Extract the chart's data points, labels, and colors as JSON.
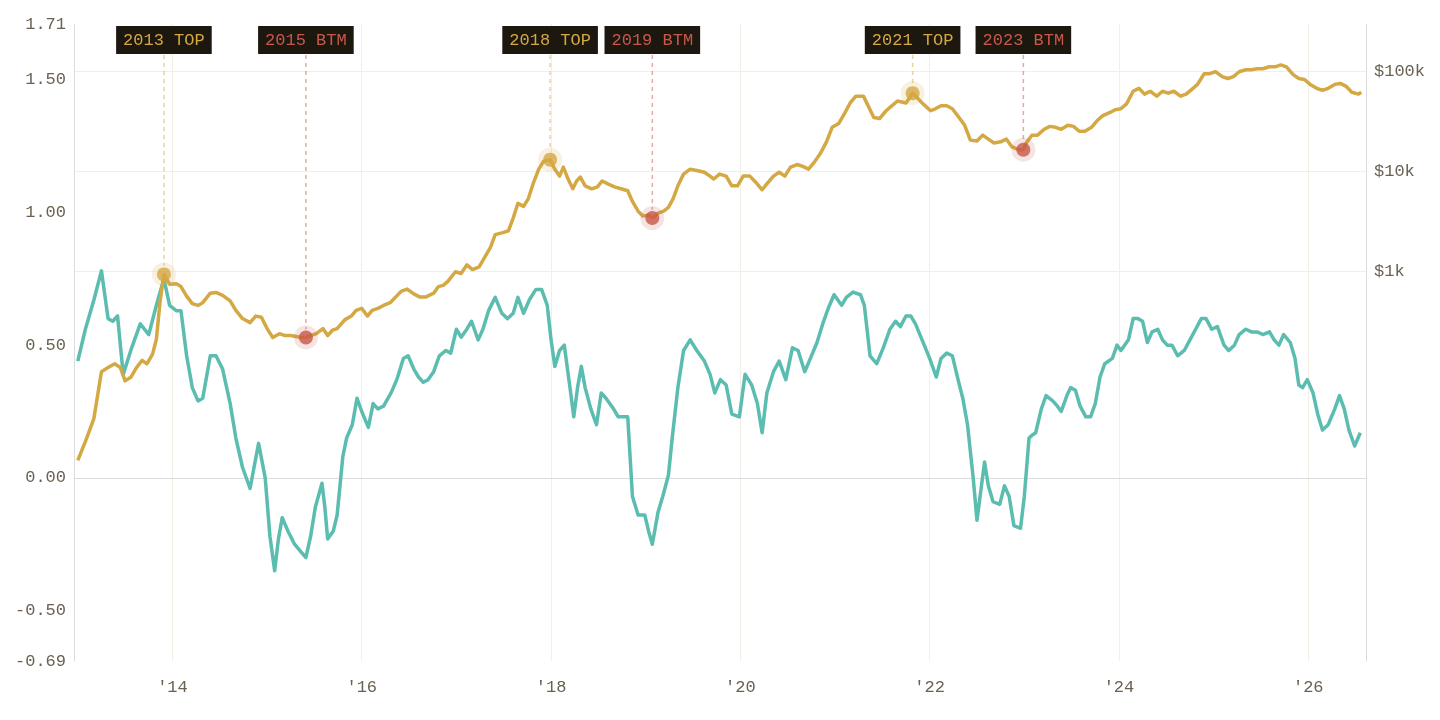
{
  "chart_data": {
    "type": "line",
    "xlim": [
      2012.96,
      2026.61
    ],
    "xticks": [
      {
        "value": 2014,
        "label": "'14"
      },
      {
        "value": 2016,
        "label": "'16"
      },
      {
        "value": 2018,
        "label": "'18"
      },
      {
        "value": 2020,
        "label": "'20"
      },
      {
        "value": 2022,
        "label": "'22"
      },
      {
        "value": 2024,
        "label": "'24"
      },
      {
        "value": 2026,
        "label": "'26"
      }
    ],
    "ylim": [
      -0.69,
      1.71
    ],
    "yticks": [
      {
        "value": -0.69,
        "label": "-0.69"
      },
      {
        "value": -0.5,
        "label": "-0.50"
      },
      {
        "value": 0,
        "label": "0.00"
      },
      {
        "value": 0.5,
        "label": "0.50"
      },
      {
        "value": 1,
        "label": "1.00"
      },
      {
        "value": 1.5,
        "label": "1.50"
      },
      {
        "value": 1.71,
        "label": "1.71"
      }
    ],
    "y2lim": [
      0.128,
      300000
    ],
    "y2ticks": [
      {
        "value": 1000,
        "label": "$1k"
      },
      {
        "value": 10000,
        "label": "$10k"
      },
      {
        "value": 100000,
        "label": "$100k"
      }
    ],
    "log": "y2",
    "grid": true,
    "series": [
      {
        "color": "#5bbcb0",
        "x": [
          2013.0,
          2013.08,
          2013.17,
          2013.25,
          2013.32,
          2013.37,
          2013.42,
          2013.48,
          2013.56,
          2013.66,
          2013.75,
          2013.83,
          2013.91,
          2013.97,
          2014.04,
          2014.09,
          2014.15,
          2014.21,
          2014.27,
          2014.32,
          2014.4,
          2014.46,
          2014.53,
          2014.61,
          2014.67,
          2014.74,
          2014.82,
          2014.91,
          2014.98,
          2015.03,
          2015.08,
          2015.12,
          2015.16,
          2015.22,
          2015.29,
          2015.36,
          2015.41,
          2015.46,
          2015.51,
          2015.58,
          2015.61,
          2015.64,
          2015.7,
          2015.74,
          2015.8,
          2015.84,
          2015.9,
          2015.95,
          2016.0,
          2016.07,
          2016.12,
          2016.17,
          2016.23,
          2016.31,
          2016.37,
          2016.44,
          2016.49,
          2016.55,
          2016.6,
          2016.65,
          2016.7,
          2016.76,
          2016.82,
          2016.89,
          2016.94,
          2017.0,
          2017.05,
          2017.11,
          2017.16,
          2017.23,
          2017.28,
          2017.34,
          2017.41,
          2017.48,
          2017.54,
          2017.6,
          2017.65,
          2017.71,
          2017.77,
          2017.84,
          2017.9,
          2017.96,
          2018.0,
          2018.04,
          2018.09,
          2018.14,
          2018.2,
          2018.24,
          2018.28,
          2018.32,
          2018.36,
          2018.42,
          2018.48,
          2018.53,
          2018.58,
          2018.66,
          2018.71,
          2018.76,
          2018.81,
          2018.86,
          2018.92,
          2018.99,
          2019.03,
          2019.07,
          2019.13,
          2019.18,
          2019.24,
          2019.28,
          2019.34,
          2019.4,
          2019.47,
          2019.54,
          2019.62,
          2019.68,
          2019.73,
          2019.79,
          2019.85,
          2019.91,
          2019.99,
          2020.05,
          2020.12,
          2020.18,
          2020.23,
          2020.28,
          2020.35,
          2020.41,
          2020.48,
          2020.55,
          2020.61,
          2020.68,
          2020.74,
          2020.81,
          2020.87,
          2020.93,
          2020.99,
          2021.07,
          2021.12,
          2021.19,
          2021.27,
          2021.31,
          2021.37,
          2021.44,
          2021.51,
          2021.58,
          2021.64,
          2021.69,
          2021.75,
          2021.8,
          2021.85,
          2021.92,
          2022.0,
          2022.07,
          2022.12,
          2022.18,
          2022.24,
          2022.3,
          2022.35,
          2022.4,
          2022.46,
          2022.5,
          2022.54,
          2022.58,
          2022.62,
          2022.67,
          2022.74,
          2022.79,
          2022.84,
          2022.89,
          2022.96,
          2023.0,
          2023.05,
          2023.08,
          2023.12,
          2023.18,
          2023.23,
          2023.3,
          2023.35,
          2023.39,
          2023.45,
          2023.49,
          2023.54,
          2023.59,
          2023.65,
          2023.7,
          2023.75,
          2023.8,
          2023.85,
          2023.93,
          2023.98,
          2024.02,
          2024.06,
          2024.1,
          2024.15,
          2024.2,
          2024.25,
          2024.3,
          2024.35,
          2024.41,
          2024.46,
          2024.51,
          2024.56,
          2024.62,
          2024.69,
          2024.75,
          2024.81,
          2024.87,
          2024.92,
          2024.98,
          2025.04,
          2025.11,
          2025.16,
          2025.22,
          2025.27,
          2025.34,
          2025.4,
          2025.46,
          2025.52,
          2025.59,
          2025.64,
          2025.69,
          2025.74,
          2025.81,
          2025.86,
          2025.9,
          2025.94,
          2025.99,
          2026.05,
          2026.1,
          2026.15,
          2026.21,
          2026.28,
          2026.33,
          2026.38,
          2026.43,
          2026.49,
          2026.55
        ],
        "values": [
          0.44,
          0.56,
          0.67,
          0.78,
          0.6,
          0.59,
          0.61,
          0.39,
          0.48,
          0.58,
          0.54,
          0.65,
          0.75,
          0.65,
          0.63,
          0.63,
          0.46,
          0.34,
          0.29,
          0.3,
          0.46,
          0.46,
          0.41,
          0.28,
          0.15,
          0.04,
          -0.04,
          0.13,
          0.0,
          -0.22,
          -0.35,
          -0.23,
          -0.15,
          -0.2,
          -0.25,
          -0.28,
          -0.3,
          -0.22,
          -0.11,
          -0.02,
          -0.11,
          -0.23,
          -0.2,
          -0.14,
          0.08,
          0.15,
          0.2,
          0.3,
          0.25,
          0.19,
          0.28,
          0.26,
          0.27,
          0.32,
          0.37,
          0.45,
          0.46,
          0.41,
          0.38,
          0.36,
          0.37,
          0.4,
          0.46,
          0.48,
          0.47,
          0.56,
          0.53,
          0.56,
          0.59,
          0.52,
          0.56,
          0.63,
          0.68,
          0.62,
          0.6,
          0.62,
          0.68,
          0.62,
          0.67,
          0.71,
          0.71,
          0.65,
          0.52,
          0.42,
          0.48,
          0.5,
          0.34,
          0.23,
          0.34,
          0.42,
          0.34,
          0.26,
          0.2,
          0.32,
          0.3,
          0.26,
          0.23,
          0.23,
          0.23,
          -0.07,
          -0.14,
          -0.14,
          -0.2,
          -0.25,
          -0.13,
          -0.07,
          0.01,
          0.15,
          0.34,
          0.48,
          0.52,
          0.48,
          0.44,
          0.39,
          0.32,
          0.37,
          0.35,
          0.24,
          0.23,
          0.39,
          0.35,
          0.28,
          0.17,
          0.32,
          0.4,
          0.44,
          0.37,
          0.49,
          0.48,
          0.4,
          0.45,
          0.51,
          0.58,
          0.64,
          0.69,
          0.65,
          0.68,
          0.7,
          0.69,
          0.65,
          0.46,
          0.43,
          0.49,
          0.56,
          0.59,
          0.57,
          0.61,
          0.61,
          0.58,
          0.52,
          0.45,
          0.38,
          0.45,
          0.47,
          0.46,
          0.37,
          0.3,
          0.2,
          0.0,
          -0.16,
          -0.05,
          0.06,
          -0.03,
          -0.09,
          -0.1,
          -0.03,
          -0.07,
          -0.18,
          -0.19,
          -0.07,
          0.15,
          0.16,
          0.17,
          0.26,
          0.31,
          0.29,
          0.27,
          0.25,
          0.31,
          0.34,
          0.33,
          0.27,
          0.23,
          0.23,
          0.28,
          0.38,
          0.43,
          0.45,
          0.5,
          0.48,
          0.5,
          0.52,
          0.6,
          0.6,
          0.59,
          0.51,
          0.55,
          0.56,
          0.52,
          0.5,
          0.5,
          0.46,
          0.48,
          0.52,
          0.56,
          0.6,
          0.6,
          0.56,
          0.57,
          0.5,
          0.48,
          0.5,
          0.54,
          0.56,
          0.55,
          0.55,
          0.54,
          0.55,
          0.52,
          0.5,
          0.54,
          0.51,
          0.45,
          0.35,
          0.34,
          0.37,
          0.32,
          0.24,
          0.18,
          0.2,
          0.26,
          0.31,
          0.26,
          0.18,
          0.12,
          0.17
        ]
      },
      {
        "color": "#d4a843",
        "axis": "y2",
        "x": [
          2013.0,
          2013.08,
          2013.17,
          2013.25,
          2013.32,
          2013.39,
          2013.45,
          2013.5,
          2013.56,
          2013.62,
          2013.68,
          2013.73,
          2013.79,
          2013.83,
          2013.87,
          2013.91,
          2013.97,
          2014.04,
          2014.09,
          2014.15,
          2014.21,
          2014.27,
          2014.32,
          2014.4,
          2014.46,
          2014.53,
          2014.61,
          2014.67,
          2014.74,
          2014.82,
          2014.88,
          2014.94,
          2015.0,
          2015.06,
          2015.13,
          2015.19,
          2015.25,
          2015.36,
          2015.41,
          2015.46,
          2015.52,
          2015.59,
          2015.64,
          2015.69,
          2015.74,
          2015.82,
          2015.89,
          2015.94,
          2016.0,
          2016.06,
          2016.11,
          2016.17,
          2016.23,
          2016.3,
          2016.36,
          2016.42,
          2016.48,
          2016.55,
          2016.61,
          2016.68,
          2016.76,
          2016.81,
          2016.86,
          2016.91,
          2016.99,
          2017.05,
          2017.11,
          2017.17,
          2017.24,
          2017.3,
          2017.36,
          2017.41,
          2017.49,
          2017.55,
          2017.6,
          2017.65,
          2017.71,
          2017.76,
          2017.81,
          2017.87,
          2017.92,
          2017.99,
          2018.04,
          2018.09,
          2018.13,
          2018.18,
          2018.23,
          2018.27,
          2018.31,
          2018.36,
          2018.43,
          2018.49,
          2018.54,
          2018.6,
          2018.67,
          2018.74,
          2018.81,
          2018.86,
          2018.92,
          2018.97,
          2019.03,
          2019.07,
          2019.13,
          2019.19,
          2019.24,
          2019.29,
          2019.34,
          2019.4,
          2019.47,
          2019.54,
          2019.62,
          2019.68,
          2019.72,
          2019.78,
          2019.85,
          2019.91,
          2019.97,
          2020.03,
          2020.1,
          2020.16,
          2020.23,
          2020.28,
          2020.35,
          2020.41,
          2020.47,
          2020.53,
          2020.6,
          2020.66,
          2020.72,
          2020.78,
          2020.85,
          2020.91,
          2020.97,
          2021.04,
          2021.1,
          2021.16,
          2021.22,
          2021.3,
          2021.35,
          2021.41,
          2021.47,
          2021.54,
          2021.6,
          2021.66,
          2021.75,
          2021.82,
          2021.87,
          2021.93,
          2022.01,
          2022.06,
          2022.12,
          2022.18,
          2022.24,
          2022.31,
          2022.37,
          2022.43,
          2022.5,
          2022.56,
          2022.62,
          2022.68,
          2022.75,
          2022.81,
          2022.87,
          2022.94,
          2022.99,
          2023.02,
          2023.08,
          2023.14,
          2023.21,
          2023.27,
          2023.33,
          2023.39,
          2023.46,
          2023.52,
          2023.58,
          2023.64,
          2023.71,
          2023.77,
          2023.83,
          2023.9,
          2023.96,
          2024.02,
          2024.08,
          2024.15,
          2024.21,
          2024.27,
          2024.33,
          2024.4,
          2024.46,
          2024.52,
          2024.58,
          2024.65,
          2024.71,
          2024.77,
          2024.83,
          2024.9,
          2024.96,
          2025.02,
          2025.09,
          2025.15,
          2025.21,
          2025.27,
          2025.34,
          2025.4,
          2025.46,
          2025.52,
          2025.59,
          2025.65,
          2025.71,
          2025.77,
          2025.84,
          2025.9,
          2025.96,
          2026.02,
          2026.09,
          2026.15,
          2026.21,
          2026.28,
          2026.34,
          2026.4,
          2026.46,
          2026.53,
          2026.56
        ],
        "values": [
          13,
          20,
          34,
          100,
          110,
          120,
          110,
          81,
          88,
          110,
          130,
          120,
          150,
          210,
          510,
          940,
          750,
          760,
          710,
          570,
          480,
          460,
          490,
          610,
          620,
          580,
          510,
          410,
          340,
          310,
          360,
          350,
          270,
          220,
          240,
          230,
          230,
          220,
          220,
          230,
          240,
          270,
          230,
          260,
          270,
          330,
          360,
          410,
          430,
          360,
          410,
          430,
          460,
          490,
          560,
          640,
          670,
          600,
          560,
          560,
          610,
          710,
          730,
          800,
          1000,
          960,
          1170,
          1050,
          1120,
          1400,
          1750,
          2350,
          2460,
          2570,
          3440,
          4820,
          4500,
          5390,
          7550,
          10600,
          12700,
          13200,
          10600,
          9040,
          11100,
          8450,
          6750,
          8080,
          8840,
          7220,
          6750,
          7060,
          8080,
          7550,
          7060,
          6750,
          6450,
          5040,
          4030,
          3600,
          3680,
          3440,
          3850,
          4030,
          4400,
          5390,
          7220,
          9460,
          10600,
          10300,
          9890,
          9040,
          8450,
          9460,
          9040,
          7220,
          7220,
          9040,
          9040,
          7900,
          6600,
          7550,
          9040,
          9890,
          9040,
          11100,
          11800,
          11300,
          10600,
          12400,
          15500,
          19900,
          27800,
          30400,
          38100,
          48700,
          57000,
          57000,
          45600,
          34800,
          34000,
          40700,
          45600,
          51000,
          48700,
          61000,
          54500,
          47700,
          40700,
          42600,
          45600,
          45600,
          42600,
          34800,
          29100,
          20700,
          20300,
          23200,
          21200,
          19400,
          19900,
          21200,
          17700,
          16600,
          16600,
          19400,
          23200,
          23200,
          26600,
          28400,
          27800,
          26600,
          29100,
          28400,
          25400,
          25400,
          27800,
          32500,
          36400,
          38900,
          41700,
          42600,
          47700,
          63800,
          68200,
          59700,
          63800,
          57000,
          63800,
          61000,
          63800,
          57000,
          59700,
          66700,
          74700,
          95500,
          95500,
          100000,
          89400,
          85500,
          89400,
          100000,
          104700,
          104700,
          107000,
          107000,
          112000,
          112000,
          117000,
          112000,
          93500,
          85500,
          83600,
          74700,
          68200,
          65300,
          68200,
          74700,
          76400,
          71400,
          62400,
          59700,
          62400
        ]
      },
      {
        "type": "scatter",
        "color": "#d4a843",
        "axis": "y2",
        "x": [
          2013.91,
          2017.99,
          2021.82
        ],
        "values": [
          940,
          13200,
          61000
        ]
      },
      {
        "type": "scatter",
        "color": "#c9584a",
        "axis": "y2",
        "x": [
          2015.41,
          2019.07,
          2022.99
        ],
        "values": [
          220,
          3440,
          16600
        ]
      }
    ],
    "annotations": [
      {
        "text": "2013 TOP",
        "x": 2013.91,
        "y": 0.77
      },
      {
        "text": "2015 BTM",
        "x": 2015.41,
        "y": 0.53
      },
      {
        "text": "2018 TOP",
        "x": 2017.99,
        "y": 1.2
      },
      {
        "text": "2019 BTM",
        "x": 2019.07,
        "y": 0.98
      },
      {
        "text": "2021 TOP",
        "x": 2021.82,
        "y": 1.45
      },
      {
        "text": "2023 BTM",
        "x": 2022.99,
        "y": 1.24
      }
    ]
  }
}
